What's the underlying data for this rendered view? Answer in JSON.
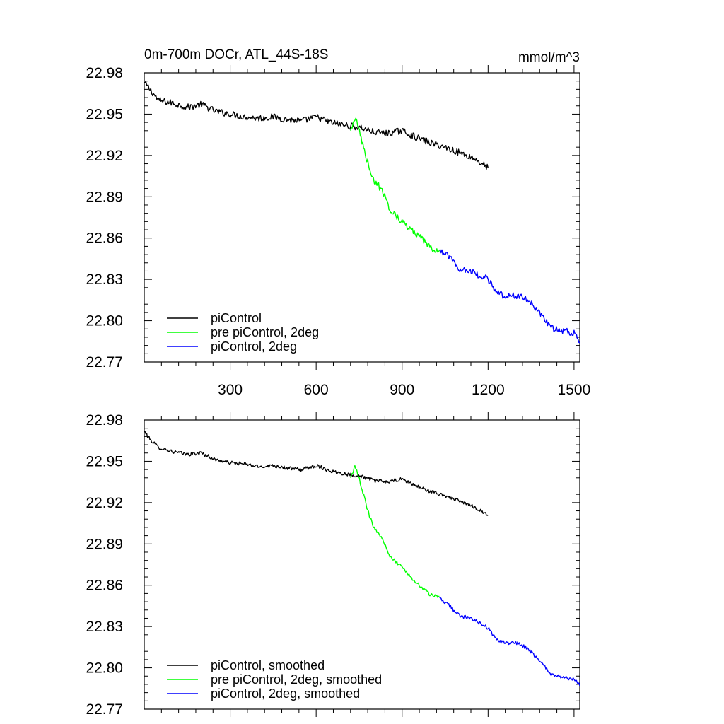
{
  "chart_data": [
    {
      "type": "line",
      "title_left": "0m-700m DOCr, ATL_44S-18S",
      "title_right": "mmol/m^3",
      "xlim": [
        0,
        1520
      ],
      "ylim": [
        22.77,
        22.98
      ],
      "x_ticks": [
        300,
        600,
        900,
        1200,
        1500
      ],
      "x_tick_labels": [
        "300",
        "600",
        "900",
        "1200",
        "1500"
      ],
      "y_ticks": [
        22.77,
        22.8,
        22.83,
        22.86,
        22.89,
        22.92,
        22.95,
        22.98
      ],
      "y_tick_labels": [
        "22.77",
        "22.80",
        "22.83",
        "22.86",
        "22.89",
        "22.92",
        "22.95",
        "22.98"
      ],
      "grid": false,
      "legend_position": "bottom-left",
      "series": [
        {
          "name": "piControl",
          "color": "#000000",
          "x": [
            0,
            20,
            50,
            100,
            150,
            200,
            250,
            300,
            350,
            400,
            450,
            500,
            550,
            600,
            650,
            700,
            730,
            760,
            800,
            850,
            900,
            950,
            1000,
            1050,
            1100,
            1150,
            1200
          ],
          "y": [
            22.973,
            22.968,
            22.96,
            22.958,
            22.955,
            22.957,
            22.952,
            22.95,
            22.948,
            22.947,
            22.948,
            22.946,
            22.945,
            22.948,
            22.944,
            22.942,
            22.941,
            22.94,
            22.937,
            22.936,
            22.938,
            22.933,
            22.929,
            22.926,
            22.922,
            22.918,
            22.911
          ]
        },
        {
          "name": "pre piControl, 2deg",
          "color": "#00ff00",
          "x": [
            720,
            735,
            745,
            760,
            780,
            800,
            830,
            860,
            900,
            930,
            960,
            1000,
            1030
          ],
          "y": [
            22.938,
            22.947,
            22.942,
            22.93,
            22.915,
            22.902,
            22.895,
            22.88,
            22.872,
            22.866,
            22.861,
            22.853,
            22.851
          ]
        },
        {
          "name": "piControl, 2deg",
          "color": "#0000ff",
          "x": [
            1030,
            1060,
            1100,
            1150,
            1200,
            1230,
            1260,
            1300,
            1340,
            1380,
            1420,
            1460,
            1500,
            1520
          ],
          "y": [
            22.851,
            22.847,
            22.838,
            22.835,
            22.83,
            22.82,
            22.818,
            22.818,
            22.815,
            22.805,
            22.795,
            22.793,
            22.791,
            22.784
          ]
        }
      ]
    },
    {
      "type": "line",
      "xlim": [
        0,
        1520
      ],
      "ylim": [
        22.77,
        22.98
      ],
      "x_ticks": [
        300,
        600,
        900,
        1200,
        1500
      ],
      "y_ticks": [
        22.77,
        22.8,
        22.83,
        22.86,
        22.89,
        22.92,
        22.95,
        22.98
      ],
      "y_tick_labels": [
        "22.77",
        "22.80",
        "22.83",
        "22.86",
        "22.89",
        "22.92",
        "22.95",
        "22.98"
      ],
      "grid": false,
      "legend_position": "bottom-left",
      "series": [
        {
          "name": "piControl, smoothed",
          "color": "#000000",
          "x": [
            0,
            20,
            50,
            100,
            150,
            200,
            250,
            300,
            350,
            400,
            450,
            500,
            550,
            600,
            650,
            700,
            730,
            760,
            800,
            850,
            900,
            950,
            1000,
            1050,
            1100,
            1150,
            1200
          ],
          "y": [
            22.972,
            22.966,
            22.96,
            22.957,
            22.955,
            22.956,
            22.951,
            22.949,
            22.948,
            22.946,
            22.947,
            22.945,
            22.944,
            22.947,
            22.943,
            22.941,
            22.94,
            22.939,
            22.936,
            22.935,
            22.937,
            22.932,
            22.928,
            22.925,
            22.921,
            22.917,
            22.911
          ]
        },
        {
          "name": "pre piControl, 2deg, smoothed",
          "color": "#00ff00",
          "x": [
            720,
            735,
            745,
            760,
            780,
            800,
            830,
            860,
            900,
            930,
            960,
            1000,
            1030
          ],
          "y": [
            22.938,
            22.946,
            22.941,
            22.93,
            22.914,
            22.903,
            22.894,
            22.88,
            22.873,
            22.866,
            22.86,
            22.853,
            22.852
          ]
        },
        {
          "name": "piControl, 2deg, smoothed",
          "color": "#0000ff",
          "x": [
            1030,
            1060,
            1100,
            1150,
            1200,
            1230,
            1260,
            1300,
            1340,
            1380,
            1420,
            1460,
            1500,
            1520
          ],
          "y": [
            22.851,
            22.846,
            22.838,
            22.835,
            22.829,
            22.82,
            22.818,
            22.818,
            22.814,
            22.805,
            22.795,
            22.793,
            22.792,
            22.787
          ]
        }
      ]
    }
  ]
}
